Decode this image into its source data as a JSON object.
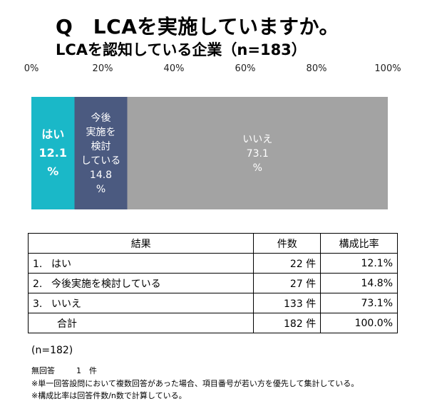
{
  "title": "Q　LCAを実施していますか。",
  "subtitle": "LCAを認知している企業（n=183）",
  "chart_data": {
    "type": "bar",
    "orientation": "horizontal",
    "stacked": true,
    "title": "Q　LCAを実施していますか。",
    "subtitle": "LCAを認知している企業（n=183）",
    "xlim": [
      0,
      100
    ],
    "x_ticks": [
      "0%",
      "20%",
      "40%",
      "60%",
      "80%",
      "100%"
    ],
    "series": [
      {
        "label_lines": [
          "はい",
          "12.1",
          "%"
        ],
        "value": 12.1,
        "color": "#1ab8c8",
        "bold": true
      },
      {
        "label_lines": [
          "今後",
          "実施を",
          "検討",
          "している",
          "14.8",
          "%"
        ],
        "value": 14.8,
        "color": "#4b5a80",
        "bold": false
      },
      {
        "label_lines": [
          "いいえ",
          "73.1",
          "%"
        ],
        "value": 73.1,
        "color": "#a3a3a3",
        "bold": false
      }
    ]
  },
  "table": {
    "headers": [
      "結果",
      "件数",
      "構成比率"
    ],
    "rows": [
      {
        "no": "1.",
        "label": "はい",
        "count": "22 件",
        "ratio": "12.1%"
      },
      {
        "no": "2.",
        "label": "今後実施を検討している",
        "count": "27 件",
        "ratio": "14.8%"
      },
      {
        "no": "3.",
        "label": "いいえ",
        "count": "133 件",
        "ratio": "73.1%"
      }
    ],
    "total": {
      "label": "合計",
      "count": "182 件",
      "ratio": "100.0%"
    }
  },
  "notes": {
    "n": "(n=182)",
    "missing_label": "無回答",
    "missing_count": "1　件",
    "lines": [
      "※単一回答設問において複数回答があった場合、項目番号が若い方を優先して集計している。",
      "※構成比率は回答件数/n数で計算している。"
    ]
  }
}
